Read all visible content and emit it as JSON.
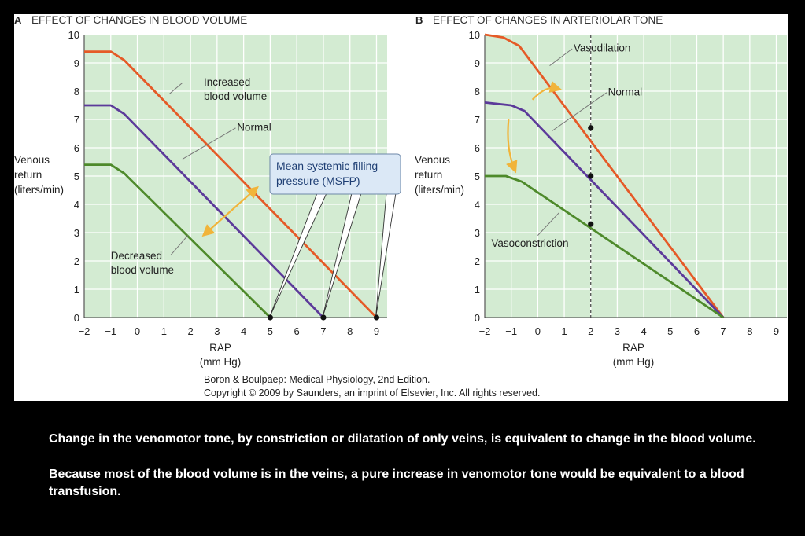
{
  "colors": {
    "background": "#000000",
    "plot_area": "#d3ebd2",
    "grid": "#ffffff",
    "increased": "#e55a27",
    "normal": "#5c3a9a",
    "decreased": "#4e8a2b",
    "msfp_box": "#dbe8f6",
    "msfp_text": "#1f3f74",
    "arrow": "#f1b43a"
  },
  "citation": {
    "line1": "Boron & Boulpaep: Medical Physiology, 2nd Edition.",
    "line2": "Copyright © 2009 by Saunders, an imprint of Elsevier, Inc. All rights reserved."
  },
  "caption": {
    "line1": "Change in the venomotor tone, by constriction or dilatation of only veins, is equivalent to change in the blood volume.",
    "line2": "Because most of the blood volume is in the veins, a pure increase in venomotor tone would be equivalent to a blood transfusion."
  },
  "chart_data": [
    {
      "type": "line",
      "panel_letter": "A",
      "title": "EFFECT OF CHANGES IN BLOOD VOLUME",
      "ylabel": [
        "Venous",
        "return",
        "(liters/min)"
      ],
      "xlabel": [
        "RAP",
        "(mm Hg)"
      ],
      "xlim": [
        -2,
        9.4
      ],
      "ylim": [
        0,
        10
      ],
      "xticks": [
        "-2",
        "-1",
        "0",
        "1",
        "2",
        "3",
        "4",
        "5",
        "6",
        "7",
        "8",
        "9"
      ],
      "yticks": [
        "0",
        "1",
        "2",
        "3",
        "4",
        "5",
        "6",
        "7",
        "8",
        "9",
        "10"
      ],
      "grid": true,
      "series": [
        {
          "name": "Increased blood volume",
          "color": "#e55a27",
          "x": [
            -2,
            -1,
            -0.5,
            9
          ],
          "y": [
            9.4,
            9.4,
            9.1,
            0
          ]
        },
        {
          "name": "Normal",
          "color": "#5c3a9a",
          "x": [
            -2,
            -1,
            -0.5,
            7
          ],
          "y": [
            7.5,
            7.5,
            7.2,
            0
          ]
        },
        {
          "name": "Decreased blood volume",
          "color": "#4e8a2b",
          "x": [
            -2,
            -1,
            -0.5,
            5
          ],
          "y": [
            5.4,
            5.4,
            5.1,
            0
          ]
        }
      ],
      "annotations": [
        {
          "text": [
            "Increased",
            "blood volume"
          ]
        },
        {
          "text": [
            "Normal"
          ]
        },
        {
          "text": [
            "Decreased",
            "blood volume"
          ]
        },
        {
          "text": [
            "Mean systemic filling",
            "pressure (MSFP)"
          ],
          "points": [
            [
              5,
              0
            ],
            [
              7,
              0
            ],
            [
              9,
              0
            ]
          ]
        }
      ]
    },
    {
      "type": "line",
      "panel_letter": "B",
      "title": "EFFECT OF CHANGES IN ARTERIOLAR TONE",
      "ylabel": [
        "Venous",
        "return",
        "(liters/min)"
      ],
      "xlabel": [
        "RAP",
        "(mm Hg)"
      ],
      "xlim": [
        -2,
        9.4
      ],
      "ylim": [
        0,
        10
      ],
      "xticks": [
        "-2",
        "-1",
        "0",
        "1",
        "2",
        "3",
        "4",
        "5",
        "6",
        "7",
        "8",
        "9"
      ],
      "yticks": [
        "0",
        "1",
        "2",
        "3",
        "4",
        "5",
        "6",
        "7",
        "8",
        "9",
        "10"
      ],
      "grid": true,
      "reference_x": 2,
      "series": [
        {
          "name": "Vasodilation",
          "color": "#e55a27",
          "x": [
            -2,
            -1.3,
            -0.7,
            7
          ],
          "y": [
            10,
            9.9,
            9.6,
            0
          ]
        },
        {
          "name": "Normal",
          "color": "#5c3a9a",
          "x": [
            -2,
            -1,
            -0.5,
            7
          ],
          "y": [
            7.6,
            7.5,
            7.3,
            0
          ]
        },
        {
          "name": "Vasoconstriction",
          "color": "#4e8a2b",
          "x": [
            -2,
            -1.2,
            -0.6,
            7
          ],
          "y": [
            5.0,
            5.0,
            4.8,
            0
          ]
        }
      ],
      "markers": [
        [
          2,
          6.7
        ],
        [
          2,
          5.0
        ],
        [
          2,
          3.3
        ]
      ],
      "annotations": [
        {
          "text": [
            "Vasodilation"
          ]
        },
        {
          "text": [
            "Normal"
          ]
        },
        {
          "text": [
            "Vasoconstriction"
          ]
        }
      ]
    }
  ]
}
